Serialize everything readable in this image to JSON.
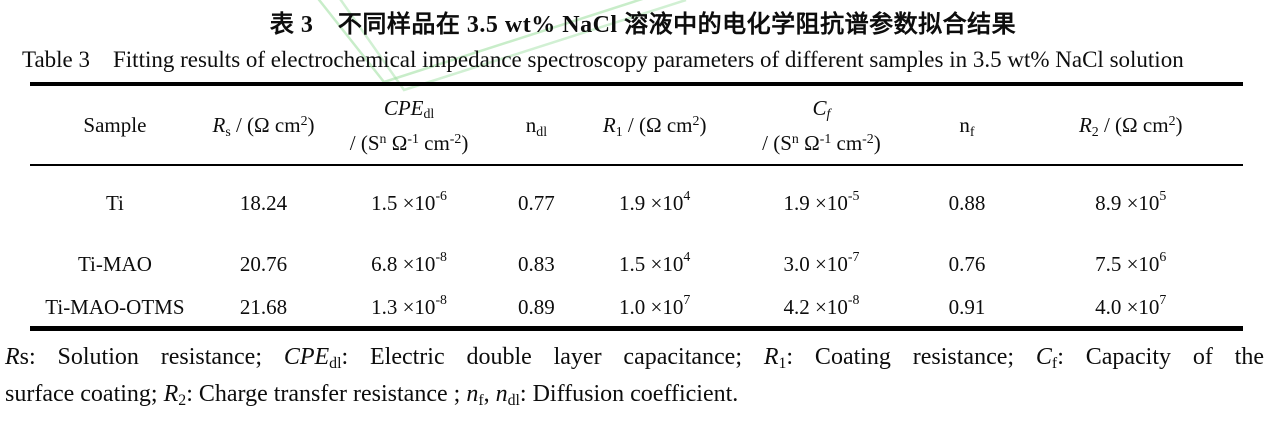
{
  "titles": {
    "zh": "表 3　不同样品在 3.5 wt% NaCl 溶液中的电化学阻抗谱参数拟合结果",
    "en": "Table 3    Fitting results of electrochemical impedance spectroscopy parameters of different samples in 3.5 wt% NaCl solution"
  },
  "watermark": {
    "color": "#9ade9d"
  },
  "table": {
    "columns": [
      {
        "id": "sample",
        "line1": "Sample",
        "line2": ""
      },
      {
        "id": "rs",
        "line1": "*R*_s_ / (Ω cm^2^)",
        "line2": ""
      },
      {
        "id": "cpe-dl",
        "line1": "*CPE*_dl_",
        "line2": "/ (S^n^ Ω^-1^ cm^-2^)"
      },
      {
        "id": "n-dl",
        "line1": "n_dl_",
        "line2": ""
      },
      {
        "id": "r1",
        "line1": "*R*_1_ / (Ω cm^2^)",
        "line2": ""
      },
      {
        "id": "cf",
        "line1": "*C*_*f*_",
        "line2": "/ (S^n^ Ω^-1^ cm^-2^)"
      },
      {
        "id": "n-f",
        "line1": "n_f_",
        "line2": ""
      },
      {
        "id": "r2",
        "line1": "*R*_2_ / (Ω cm^2^)",
        "line2": ""
      }
    ],
    "rows": [
      {
        "cells": [
          "Ti",
          "18.24",
          "1.5 ×10^-6^",
          "0.77",
          "1.9 ×10^4^",
          "1.9 ×10^-5^",
          "0.88",
          "8.9 ×10^5^"
        ]
      },
      {
        "cells": [
          "Ti-MAO",
          "20.76",
          "6.8 ×10^-8^",
          "0.83",
          "1.5 ×10^4^",
          "3.0 ×10^-7^",
          "0.76",
          "7.5 ×10^6^"
        ]
      },
      {
        "cells": [
          "Ti-MAO-OTMS",
          "21.68",
          "1.3 ×10^-8^",
          "0.89",
          "1.0 ×10^7^",
          "4.2 ×10^-8^",
          "0.91",
          "4.0 ×10^7^"
        ]
      }
    ]
  },
  "footnote": {
    "line1": "*R*s: Solution resistance; *CPE*_dl_: Electric double layer capacitance; *R*_1_: Coating resistance; *C*_f_: Capacity of the",
    "line2": "surface coating; *R*_2_: Charge transfer resistance ; *n*_f_, *n*_dl_: Diffusion coefficient."
  }
}
